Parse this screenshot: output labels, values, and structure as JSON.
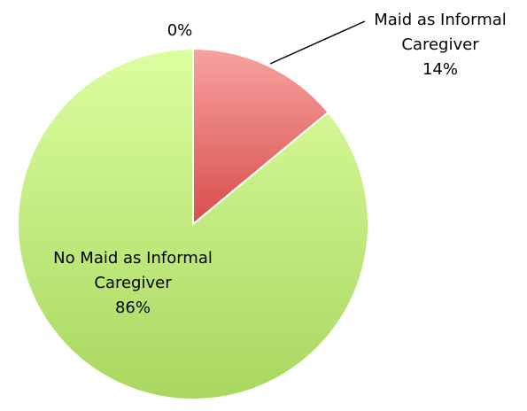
{
  "chart_data": {
    "type": "pie",
    "title": "",
    "slices": [
      {
        "label_lines": [
          "",
          ""
        ],
        "percent_label": "0%",
        "value": 0
      },
      {
        "label_lines": [
          "Maid as Informal",
          "Caregiver"
        ],
        "percent_label": "14%",
        "value": 14,
        "color_top": "#f6a3a1",
        "color_bottom": "#d94d4b"
      },
      {
        "label_lines": [
          "No Maid as Informal",
          "Caregiver"
        ],
        "percent_label": "86%",
        "value": 86,
        "color_top": "#dcfea0",
        "color_bottom": "#a9d75f"
      }
    ],
    "legend": "none",
    "start_angle_deg": 0,
    "direction": "clockwise"
  }
}
